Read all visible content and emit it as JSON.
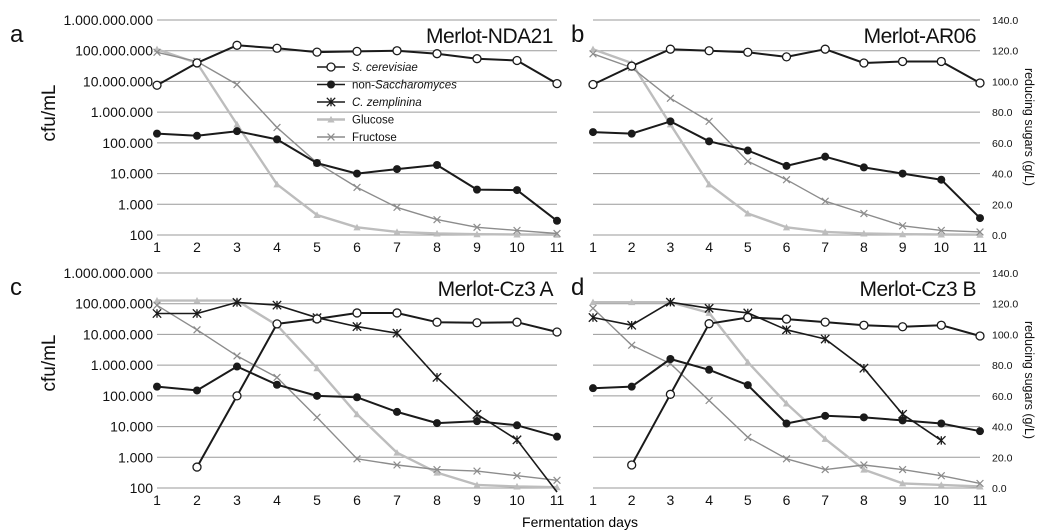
{
  "figure": {
    "y_label": "cfu/mL",
    "y2_label": "reducing sugars (g/L)",
    "x_label": "Fermentation days"
  },
  "legend": [
    {
      "name": "S. cerevisiae",
      "italic": true,
      "marker": "open-circle",
      "color": "#1a1a1a"
    },
    {
      "name_prefix": "non-",
      "name_italic": "Saccharomyces",
      "name": "non-Saccharomyces",
      "marker": "filled-circle",
      "color": "#1a1a1a"
    },
    {
      "name": "C. zemplinina",
      "italic": true,
      "marker": "star",
      "color": "#1a1a1a"
    },
    {
      "name": "Glucose",
      "italic": false,
      "marker": "triangle",
      "color": "#bdbdbd"
    },
    {
      "name": "Fructose",
      "italic": false,
      "marker": "x",
      "color": "#8c8c8c"
    }
  ],
  "colors": {
    "yeast_line": "#1a1a1a",
    "glucose": "#bdbdbd",
    "fructose": "#8c8c8c",
    "grid": "#9a9a9a"
  },
  "chart_data": [
    {
      "type": "line",
      "panel_letter": "a",
      "title": "Merlot-NDA21",
      "x": [
        1,
        2,
        3,
        4,
        5,
        6,
        7,
        8,
        9,
        10,
        11
      ],
      "y_scale": "log",
      "ylim": [
        100,
        1000000000
      ],
      "y_ticks": [
        "1.000.000.000",
        "100.000.000",
        "10.000.000",
        "1.000.000",
        "100.000",
        "10.000",
        "1.000",
        "100"
      ],
      "y2lim": [
        0,
        140
      ],
      "y2_ticks": [
        "140.0",
        "120.0",
        "100.0",
        "80.0",
        "60.0",
        "40.0",
        "20.0",
        "0.0"
      ],
      "series": [
        {
          "name": "S. cerevisiae",
          "axis": "left",
          "values": [
            7500000,
            40000000,
            150000000,
            120000000,
            90000000,
            95000000,
            100000000,
            80000000,
            55000000,
            48000000,
            8500000
          ]
        },
        {
          "name": "non-Saccharomyces",
          "axis": "left",
          "values": [
            200000,
            170000,
            240000,
            130000,
            22000,
            10000,
            14000,
            19000,
            3000,
            2900,
            290
          ]
        },
        {
          "name": "C. zemplinina",
          "axis": "left",
          "values": [
            null,
            null,
            null,
            null,
            null,
            null,
            null,
            null,
            null,
            null,
            null
          ]
        },
        {
          "name": "Glucose",
          "axis": "right",
          "values": [
            121,
            112,
            72,
            33,
            13,
            5,
            2,
            1,
            0.5,
            0.3,
            0.2
          ]
        },
        {
          "name": "Fructose",
          "axis": "right",
          "values": [
            119,
            113,
            98,
            70,
            47,
            31,
            18,
            10,
            5,
            3,
            1
          ]
        }
      ]
    },
    {
      "type": "line",
      "panel_letter": "b",
      "title": "Merlot-AR06",
      "x": [
        1,
        2,
        3,
        4,
        5,
        6,
        7,
        8,
        9,
        10,
        11
      ],
      "y_scale": "log",
      "ylim": [
        100,
        1000000000
      ],
      "y_ticks": [
        "1.000.000.000",
        "100.000.000",
        "10.000.000",
        "1.000.000",
        "100.000",
        "10.000",
        "1.000",
        "100"
      ],
      "y2lim": [
        0,
        140
      ],
      "y2_ticks": [
        "140.0",
        "120.0",
        "100.0",
        "80.0",
        "60.0",
        "40.0",
        "20.0",
        "0.0"
      ],
      "series": [
        {
          "name": "S. cerevisiae",
          "axis": "right",
          "values": [
            98,
            110,
            121,
            120,
            119,
            116,
            121,
            112,
            113,
            113,
            99
          ]
        },
        {
          "name": "non-Saccharomyces",
          "axis": "right",
          "values": [
            67,
            66,
            74,
            61,
            55,
            45,
            51,
            44,
            40,
            36,
            11
          ]
        },
        {
          "name": "C. zemplinina",
          "axis": "right",
          "values": [
            null,
            null,
            null,
            null,
            null,
            null,
            null,
            null,
            null,
            null,
            null
          ]
        },
        {
          "name": "Glucose",
          "axis": "right",
          "values": [
            121,
            112,
            72,
            33,
            14,
            5,
            2,
            1,
            0.5,
            0.3,
            0.2
          ]
        },
        {
          "name": "Fructose",
          "axis": "right",
          "values": [
            118,
            109,
            89,
            74,
            48,
            36,
            22,
            14,
            6,
            3,
            2
          ]
        }
      ]
    },
    {
      "type": "line",
      "panel_letter": "c",
      "title": "Merlot-Cz3 A",
      "x": [
        1,
        2,
        3,
        4,
        5,
        6,
        7,
        8,
        9,
        10,
        11
      ],
      "y_scale": "log",
      "ylim": [
        100,
        1000000000
      ],
      "y_ticks": [
        "1.000.000.000",
        "100.000.000",
        "10.000.000",
        "1.000.000",
        "100.000",
        "10.000",
        "1.000",
        "100"
      ],
      "y2lim": [
        0,
        140
      ],
      "y2_ticks": [
        "140.0",
        "120.0",
        "100.0",
        "80.0",
        "60.0",
        "40.0",
        "20.0",
        "0.0"
      ],
      "series": [
        {
          "name": "S. cerevisiae",
          "axis": "left",
          "values": [
            null,
            480,
            100000,
            22000000,
            32000000,
            50000000,
            50000000,
            25000000,
            24000000,
            25000000,
            12000000
          ]
        },
        {
          "name": "non-Saccharomyces",
          "axis": "left",
          "values": [
            200000,
            150000,
            900000,
            230000,
            100000,
            90000,
            30000,
            13000,
            15000,
            11000,
            4700
          ]
        },
        {
          "name": "C. zemplinina",
          "axis": "left",
          "values": [
            48000000,
            48000000,
            110000000,
            90000000,
            35000000,
            18000000,
            11000000,
            400000,
            25000,
            3700,
            35
          ]
        },
        {
          "name": "Glucose",
          "axis": "right",
          "values": [
            122,
            122,
            122,
            106,
            78,
            48,
            23,
            10,
            2,
            1,
            0.5
          ]
        },
        {
          "name": "Fructose",
          "axis": "right",
          "values": [
            119,
            103,
            86,
            72,
            46,
            19,
            15,
            12,
            11,
            8,
            5
          ]
        }
      ]
    },
    {
      "type": "line",
      "panel_letter": "d",
      "title": "Merlot-Cz3 B",
      "x": [
        1,
        2,
        3,
        4,
        5,
        6,
        7,
        8,
        9,
        10,
        11
      ],
      "y_scale": "log",
      "ylim": [
        100,
        1000000000
      ],
      "y_ticks": [
        "1.000.000.000",
        "100.000.000",
        "10.000.000",
        "1.000.000",
        "100.000",
        "10.000",
        "1.000",
        "100"
      ],
      "y2lim": [
        0,
        140
      ],
      "y2_ticks": [
        "140.0",
        "120.0",
        "100.0",
        "80.0",
        "60.0",
        "40.0",
        "20.0",
        "0.0"
      ],
      "series": [
        {
          "name": "S. cerevisiae",
          "axis": "right",
          "values": [
            null,
            15,
            61,
            107,
            111,
            110,
            108,
            106,
            105,
            106,
            99
          ]
        },
        {
          "name": "non-Saccharomyces",
          "axis": "right",
          "values": [
            65,
            66,
            84,
            77,
            67,
            42,
            47,
            46,
            44,
            42,
            37
          ]
        },
        {
          "name": "C. zemplinina",
          "axis": "right",
          "values": [
            111,
            106,
            121,
            117,
            114,
            103,
            97,
            78,
            48,
            31,
            null
          ]
        },
        {
          "name": "Glucose",
          "axis": "right",
          "values": [
            121,
            121,
            121,
            114,
            82,
            55,
            32,
            12,
            3,
            2,
            1
          ]
        },
        {
          "name": "Fructose",
          "axis": "right",
          "values": [
            117,
            93,
            81,
            57,
            33,
            19,
            12,
            15,
            12,
            8,
            3
          ]
        }
      ]
    }
  ]
}
